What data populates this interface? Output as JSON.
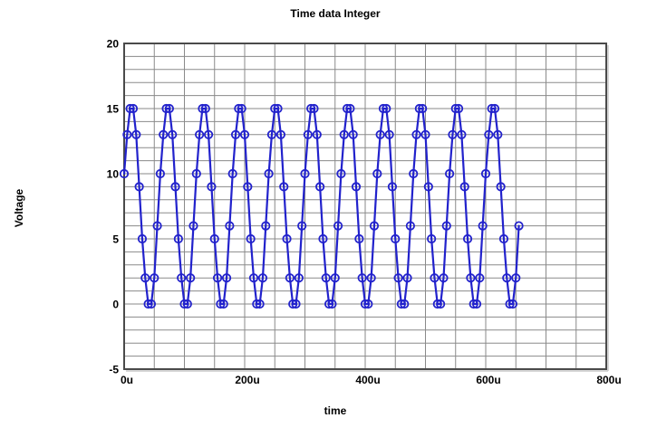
{
  "chart": {
    "title": "Time data Integer",
    "xlabel": "time",
    "ylabel": "Voltage"
  },
  "chart_data": {
    "type": "line",
    "title": "Time data Integer",
    "xlabel": "time",
    "ylabel": "Voltage",
    "x_unit": "u",
    "xlim": [
      0,
      800
    ],
    "ylim": [
      -5,
      20
    ],
    "grid": true,
    "grid_x_step": 50,
    "grid_y_step": 1,
    "x_ticks": [
      0,
      200,
      400,
      600,
      800
    ],
    "x_tick_labels": [
      "0u",
      "200u",
      "400u",
      "600u",
      "800u"
    ],
    "y_ticks": [
      -5,
      0,
      5,
      10,
      15,
      20
    ],
    "y_tick_labels": [
      "-5",
      "0",
      "5",
      "10",
      "15",
      "20"
    ],
    "legend": "none",
    "marker": {
      "shape": "circle",
      "radius": 4.2
    },
    "colors": {
      "line": "#2222cc",
      "grid": "#8a8a8a",
      "border": "#4a4a4a",
      "border_shadow": "#c8c8c8",
      "background": "#ffffff",
      "text": "#000000"
    },
    "x_us": [
      0,
      5,
      10,
      15,
      20,
      25,
      30,
      35,
      40,
      45,
      50,
      55,
      60,
      65,
      70,
      75,
      80,
      85,
      90,
      95,
      100,
      105,
      110,
      115,
      120,
      125,
      130,
      135,
      140,
      145,
      150,
      155,
      160,
      165,
      170,
      175,
      180,
      185,
      190,
      195,
      200,
      205,
      210,
      215,
      220,
      225,
      230,
      235,
      240,
      245,
      250,
      255,
      260,
      265,
      270,
      275,
      280,
      285,
      290,
      295,
      300,
      305,
      310,
      315,
      320,
      325,
      330,
      335,
      340,
      345,
      350,
      355,
      360,
      365,
      370,
      375,
      380,
      385,
      390,
      395,
      400,
      405,
      410,
      415,
      420,
      425,
      430,
      435,
      440,
      445,
      450,
      455,
      460,
      465,
      470,
      475,
      480,
      485,
      490,
      495,
      500,
      505,
      510,
      515,
      520,
      525,
      530,
      535,
      540,
      545,
      550,
      555,
      560,
      565,
      570,
      575,
      580,
      585,
      590,
      595,
      600,
      605,
      610,
      615,
      620,
      625,
      630,
      635,
      640,
      645,
      650,
      655
    ],
    "values": [
      10,
      13,
      15,
      15,
      13,
      9,
      5,
      2,
      0,
      0,
      2,
      6,
      10,
      13,
      15,
      15,
      13,
      9,
      5,
      2,
      0,
      0,
      2,
      6,
      10,
      13,
      15,
      15,
      13,
      9,
      5,
      2,
      0,
      0,
      2,
      6,
      10,
      13,
      15,
      15,
      13,
      9,
      5,
      2,
      0,
      0,
      2,
      6,
      10,
      13,
      15,
      15,
      13,
      9,
      5,
      2,
      0,
      0,
      2,
      6,
      10,
      13,
      15,
      15,
      13,
      9,
      5,
      2,
      0,
      0,
      2,
      6,
      10,
      13,
      15,
      15,
      13,
      9,
      5,
      2,
      0,
      0,
      2,
      6,
      10,
      13,
      15,
      15,
      13,
      9,
      5,
      2,
      0,
      0,
      2,
      6,
      10,
      13,
      15,
      15,
      13,
      9,
      5,
      2,
      0,
      0,
      2,
      6,
      10,
      13,
      15,
      15,
      13,
      9,
      5,
      2,
      0,
      0,
      2,
      6,
      10,
      13,
      15,
      15,
      13,
      9,
      5,
      2,
      0,
      0,
      2,
      6
    ]
  }
}
